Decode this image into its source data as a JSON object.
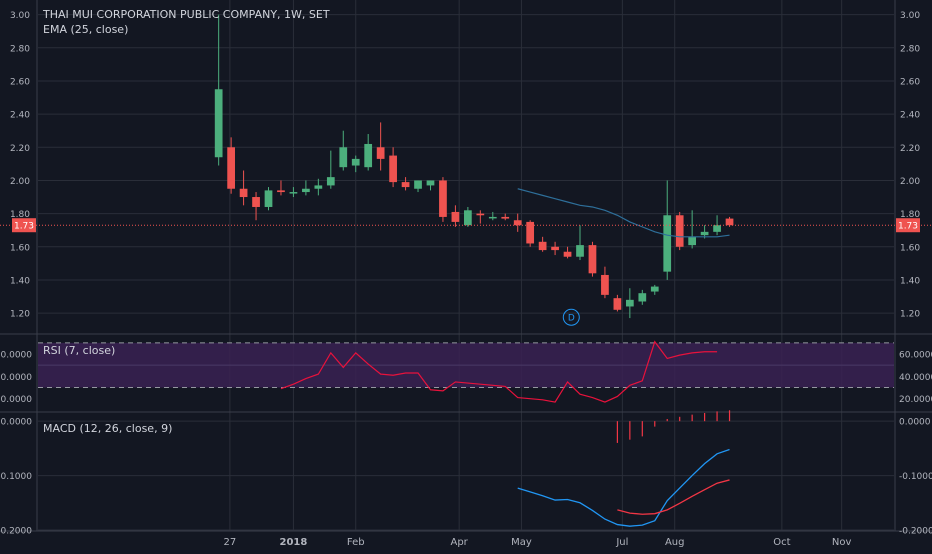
{
  "header": {
    "title": "THAI MUI CORPORATION PUBLIC COMPANY, 1W, SET",
    "ema_label": "EMA (25, close)"
  },
  "colors": {
    "background": "#131722",
    "grid": "#2a2e39",
    "text": "#b2b5be",
    "up": "#26a69a",
    "up_body": "#4caf7d",
    "down": "#ef5350",
    "ema": "#2e6f9a",
    "rsi": "#e8123c",
    "rsi_band": "#3a2152",
    "macd": "#2196f3",
    "signal": "#f23645",
    "price_line": "#ef5350"
  },
  "chart_data": [
    {
      "type": "candlestick",
      "name": "price",
      "title": "THAI MUI CORPORATION PUBLIC COMPANY, 1W, SET",
      "ylim": [
        1.08,
        3.04
      ],
      "yticks": [
        "3.00",
        "2.80",
        "2.60",
        "2.40",
        "2.20",
        "2.00",
        "1.80",
        "1.60",
        "1.40",
        "1.20"
      ],
      "yticks_values": [
        3.0,
        2.8,
        2.6,
        2.4,
        2.2,
        2.0,
        1.8,
        1.6,
        1.4,
        1.2
      ],
      "x_labels": [
        "27",
        "2018",
        "Feb",
        "Apr",
        "May",
        "Jul",
        "Aug",
        "Oct",
        "Nov"
      ],
      "x_label_index": [
        0.9,
        6.0,
        11.0,
        19.3,
        24.3,
        32.4,
        36.6,
        45.2,
        50.0
      ],
      "index_range": [
        -14.5,
        54.2
      ],
      "last_price": "1.73",
      "last_price_value": 1.73,
      "event_marker": "D",
      "event_marker_index": 28.3,
      "event_marker_value": 1.175,
      "candles": [
        {
          "i": 0,
          "o": 2.14,
          "h": 3.0,
          "l": 2.09,
          "c": 2.55
        },
        {
          "i": 1,
          "o": 2.2,
          "h": 2.26,
          "l": 1.92,
          "c": 1.95
        },
        {
          "i": 2,
          "o": 1.95,
          "h": 2.06,
          "l": 1.85,
          "c": 1.9
        },
        {
          "i": 3,
          "o": 1.9,
          "h": 1.93,
          "l": 1.76,
          "c": 1.84
        },
        {
          "i": 4,
          "o": 1.84,
          "h": 1.96,
          "l": 1.82,
          "c": 1.94
        },
        {
          "i": 5,
          "o": 1.94,
          "h": 2.0,
          "l": 1.91,
          "c": 1.93
        },
        {
          "i": 6,
          "o": 1.93,
          "h": 1.96,
          "l": 1.9,
          "c": 1.93
        },
        {
          "i": 7,
          "o": 1.93,
          "h": 2.0,
          "l": 1.91,
          "c": 1.95
        },
        {
          "i": 8,
          "o": 1.95,
          "h": 2.01,
          "l": 1.91,
          "c": 1.97
        },
        {
          "i": 9,
          "o": 1.97,
          "h": 2.18,
          "l": 1.95,
          "c": 2.02
        },
        {
          "i": 10,
          "o": 2.08,
          "h": 2.3,
          "l": 2.06,
          "c": 2.2
        },
        {
          "i": 11,
          "o": 2.09,
          "h": 2.15,
          "l": 2.05,
          "c": 2.13
        },
        {
          "i": 12,
          "o": 2.08,
          "h": 2.28,
          "l": 2.06,
          "c": 2.22
        },
        {
          "i": 13,
          "o": 2.2,
          "h": 2.35,
          "l": 2.06,
          "c": 2.13
        },
        {
          "i": 14,
          "o": 2.15,
          "h": 2.2,
          "l": 1.96,
          "c": 1.99
        },
        {
          "i": 15,
          "o": 1.99,
          "h": 2.02,
          "l": 1.94,
          "c": 1.96
        },
        {
          "i": 16,
          "o": 1.95,
          "h": 2.0,
          "l": 1.93,
          "c": 2.0
        },
        {
          "i": 17,
          "o": 1.97,
          "h": 2.0,
          "l": 1.94,
          "c": 2.0
        },
        {
          "i": 18,
          "o": 2.0,
          "h": 2.02,
          "l": 1.75,
          "c": 1.78
        },
        {
          "i": 19,
          "o": 1.81,
          "h": 1.85,
          "l": 1.72,
          "c": 1.75
        },
        {
          "i": 20,
          "o": 1.73,
          "h": 1.84,
          "l": 1.72,
          "c": 1.82
        },
        {
          "i": 21,
          "o": 1.8,
          "h": 1.82,
          "l": 1.74,
          "c": 1.79
        },
        {
          "i": 22,
          "o": 1.78,
          "h": 1.81,
          "l": 1.76,
          "c": 1.78
        },
        {
          "i": 23,
          "o": 1.78,
          "h": 1.8,
          "l": 1.76,
          "c": 1.77
        },
        {
          "i": 24,
          "o": 1.76,
          "h": 1.8,
          "l": 1.69,
          "c": 1.73
        },
        {
          "i": 25,
          "o": 1.75,
          "h": 1.76,
          "l": 1.6,
          "c": 1.62
        },
        {
          "i": 26,
          "o": 1.63,
          "h": 1.66,
          "l": 1.57,
          "c": 1.58
        },
        {
          "i": 27,
          "o": 1.6,
          "h": 1.63,
          "l": 1.55,
          "c": 1.58
        },
        {
          "i": 28,
          "o": 1.57,
          "h": 1.6,
          "l": 1.53,
          "c": 1.54
        },
        {
          "i": 29,
          "o": 1.54,
          "h": 1.73,
          "l": 1.52,
          "c": 1.61
        },
        {
          "i": 30,
          "o": 1.61,
          "h": 1.63,
          "l": 1.42,
          "c": 1.44
        },
        {
          "i": 31,
          "o": 1.43,
          "h": 1.48,
          "l": 1.29,
          "c": 1.31
        },
        {
          "i": 32,
          "o": 1.29,
          "h": 1.31,
          "l": 1.21,
          "c": 1.22
        },
        {
          "i": 33,
          "o": 1.24,
          "h": 1.35,
          "l": 1.17,
          "c": 1.28
        },
        {
          "i": 34,
          "o": 1.27,
          "h": 1.34,
          "l": 1.25,
          "c": 1.32
        },
        {
          "i": 35,
          "o": 1.33,
          "h": 1.37,
          "l": 1.31,
          "c": 1.36
        },
        {
          "i": 36,
          "o": 1.45,
          "h": 2.0,
          "l": 1.4,
          "c": 1.79
        },
        {
          "i": 37,
          "o": 1.79,
          "h": 1.81,
          "l": 1.58,
          "c": 1.6
        },
        {
          "i": 38,
          "o": 1.61,
          "h": 1.82,
          "l": 1.59,
          "c": 1.66
        },
        {
          "i": 39,
          "o": 1.67,
          "h": 1.73,
          "l": 1.65,
          "c": 1.69
        },
        {
          "i": 40,
          "o": 1.69,
          "h": 1.79,
          "l": 1.67,
          "c": 1.73
        },
        {
          "i": 41,
          "o": 1.77,
          "h": 1.78,
          "l": 1.72,
          "c": 1.73
        }
      ],
      "ema": {
        "label": "EMA (25, close)",
        "points": [
          {
            "i": 24,
            "v": 1.95
          },
          {
            "i": 25,
            "v": 1.93
          },
          {
            "i": 26,
            "v": 1.91
          },
          {
            "i": 27,
            "v": 1.89
          },
          {
            "i": 28,
            "v": 1.87
          },
          {
            "i": 29,
            "v": 1.85
          },
          {
            "i": 30,
            "v": 1.84
          },
          {
            "i": 31,
            "v": 1.82
          },
          {
            "i": 32,
            "v": 1.79
          },
          {
            "i": 33,
            "v": 1.75
          },
          {
            "i": 34,
            "v": 1.72
          },
          {
            "i": 35,
            "v": 1.69
          },
          {
            "i": 36,
            "v": 1.67
          },
          {
            "i": 37,
            "v": 1.66
          },
          {
            "i": 38,
            "v": 1.66
          },
          {
            "i": 39,
            "v": 1.66
          },
          {
            "i": 40,
            "v": 1.66
          },
          {
            "i": 41,
            "v": 1.67
          }
        ]
      }
    },
    {
      "type": "line",
      "name": "rsi",
      "title": "RSI (7, close)",
      "ylim": [
        9,
        77
      ],
      "yticks": [
        "60.0000",
        "40.0000",
        "20.0000"
      ],
      "yticks_values": [
        60,
        40,
        20
      ],
      "band": [
        30,
        70
      ],
      "midline": 50,
      "points": [
        {
          "i": 5,
          "v": 29
        },
        {
          "i": 6,
          "v": 33
        },
        {
          "i": 7,
          "v": 38
        },
        {
          "i": 8,
          "v": 42
        },
        {
          "i": 9,
          "v": 61
        },
        {
          "i": 10,
          "v": 48
        },
        {
          "i": 11,
          "v": 61
        },
        {
          "i": 12,
          "v": 51
        },
        {
          "i": 13,
          "v": 42
        },
        {
          "i": 14,
          "v": 41
        },
        {
          "i": 15,
          "v": 43
        },
        {
          "i": 16,
          "v": 43
        },
        {
          "i": 17,
          "v": 28
        },
        {
          "i": 18,
          "v": 27
        },
        {
          "i": 19,
          "v": 35
        },
        {
          "i": 20,
          "v": 34
        },
        {
          "i": 21,
          "v": 33
        },
        {
          "i": 22,
          "v": 32
        },
        {
          "i": 23,
          "v": 31
        },
        {
          "i": 24,
          "v": 21
        },
        {
          "i": 25,
          "v": 20
        },
        {
          "i": 26,
          "v": 19
        },
        {
          "i": 27,
          "v": 17
        },
        {
          "i": 28,
          "v": 35
        },
        {
          "i": 29,
          "v": 24
        },
        {
          "i": 30,
          "v": 21
        },
        {
          "i": 31,
          "v": 17
        },
        {
          "i": 32,
          "v": 22
        },
        {
          "i": 33,
          "v": 32
        },
        {
          "i": 34,
          "v": 36
        },
        {
          "i": 35,
          "v": 71
        },
        {
          "i": 36,
          "v": 56
        },
        {
          "i": 37,
          "v": 59
        },
        {
          "i": 38,
          "v": 61
        },
        {
          "i": 39,
          "v": 62
        },
        {
          "i": 40,
          "v": 62
        }
      ]
    },
    {
      "type": "line",
      "name": "macd",
      "title": "MACD (12, 26, close, 9)",
      "ylim": [
        -0.2,
        0.015
      ],
      "yticks": [
        "0.0000",
        "-0.1000",
        "-0.2000"
      ],
      "yticks_values": [
        0,
        -0.1,
        -0.2
      ],
      "macd_line": [
        {
          "i": 24,
          "v": -0.123
        },
        {
          "i": 25,
          "v": -0.13
        },
        {
          "i": 26,
          "v": -0.137
        },
        {
          "i": 27,
          "v": -0.145
        },
        {
          "i": 28,
          "v": -0.144
        },
        {
          "i": 29,
          "v": -0.15
        },
        {
          "i": 30,
          "v": -0.164
        },
        {
          "i": 31,
          "v": -0.18
        },
        {
          "i": 32,
          "v": -0.19
        },
        {
          "i": 33,
          "v": -0.193
        },
        {
          "i": 34,
          "v": -0.191
        },
        {
          "i": 35,
          "v": -0.183
        },
        {
          "i": 36,
          "v": -0.146
        },
        {
          "i": 37,
          "v": -0.123
        },
        {
          "i": 38,
          "v": -0.1
        },
        {
          "i": 39,
          "v": -0.078
        },
        {
          "i": 40,
          "v": -0.06
        },
        {
          "i": 41,
          "v": -0.052
        }
      ],
      "signal_line": [
        {
          "i": 32,
          "v": -0.163
        },
        {
          "i": 33,
          "v": -0.169
        },
        {
          "i": 34,
          "v": -0.171
        },
        {
          "i": 35,
          "v": -0.17
        },
        {
          "i": 36,
          "v": -0.163
        },
        {
          "i": 37,
          "v": -0.151
        },
        {
          "i": 38,
          "v": -0.138
        },
        {
          "i": 39,
          "v": -0.126
        },
        {
          "i": 40,
          "v": -0.114
        },
        {
          "i": 41,
          "v": -0.108
        }
      ],
      "histogram": [
        {
          "i": 32,
          "v": -0.04
        },
        {
          "i": 33,
          "v": -0.034
        },
        {
          "i": 34,
          "v": -0.028
        },
        {
          "i": 35,
          "v": -0.01
        },
        {
          "i": 36,
          "v": 0.004
        },
        {
          "i": 37,
          "v": 0.008
        },
        {
          "i": 38,
          "v": 0.012
        },
        {
          "i": 39,
          "v": 0.015
        },
        {
          "i": 40,
          "v": 0.018
        },
        {
          "i": 41,
          "v": 0.02
        }
      ]
    }
  ]
}
